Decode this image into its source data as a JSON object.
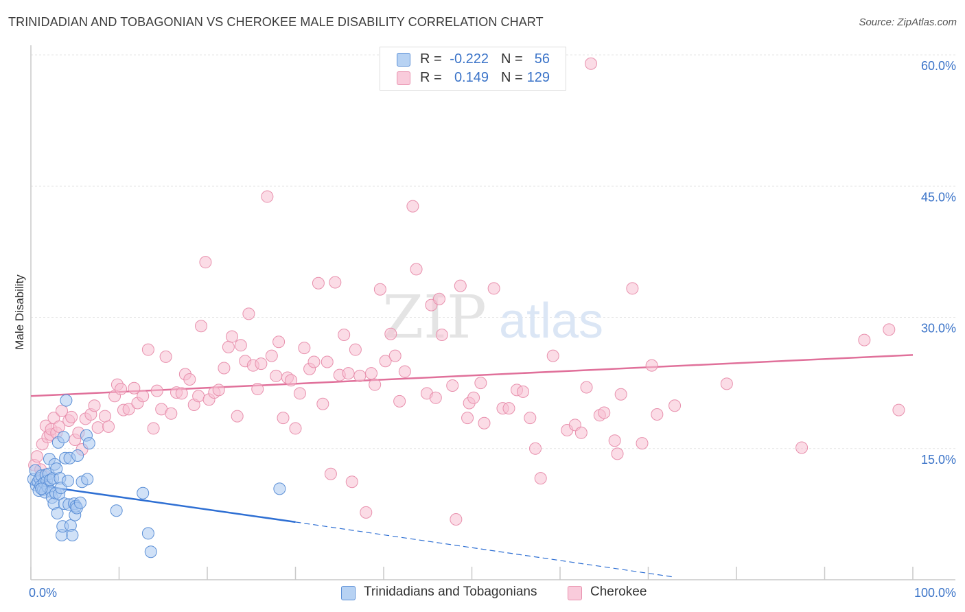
{
  "header": {
    "title": "TRINIDADIAN AND TOBAGONIAN VS CHEROKEE MALE DISABILITY CORRELATION CHART",
    "source": "Source: ZipAtlas.com"
  },
  "watermark": {
    "zip": "ZIP",
    "atlas": "atlas"
  },
  "legend": {
    "rows": [
      {
        "r_label": "R =",
        "r_value": "-0.222",
        "n_label": "N =",
        "n_value": "56"
      },
      {
        "r_label": "R =",
        "r_value": "0.149",
        "n_label": "N =",
        "n_value": "129"
      }
    ]
  },
  "bottom_legend": {
    "items": [
      {
        "label": "Trinidadians and Tobagonians"
      },
      {
        "label": "Cherokee"
      }
    ]
  },
  "colors": {
    "blue_fill": "#a9c8f0",
    "blue_stroke": "#5b8fd6",
    "blue_line": "#2e6fd3",
    "pink_fill": "#f7c0d2",
    "pink_stroke": "#e890ad",
    "pink_line": "#e0709a",
    "tick_label": "#3a73c8",
    "grid": "#e4e4e4"
  },
  "chart_data": {
    "type": "scatter",
    "title": "TRINIDADIAN AND TOBAGONIAN VS CHEROKEE MALE DISABILITY CORRELATION CHART",
    "xlabel": "",
    "ylabel": "Male Disability",
    "xlim": [
      0,
      100
    ],
    "ylim": [
      0,
      60
    ],
    "x_tick_labels": [
      "0.0%",
      "100.0%"
    ],
    "y_ticks": [
      15,
      30,
      45,
      60
    ],
    "y_tick_labels": [
      "15.0%",
      "30.0%",
      "45.0%",
      "60.0%"
    ],
    "grid": true,
    "legend_position": "top-center",
    "series": [
      {
        "name": "Trinidadians and Tobagonians",
        "r": -0.222,
        "n": 56,
        "trend": {
          "x": [
            0,
            30,
            73
          ],
          "y": [
            10.9,
            6.6,
            0.3
          ],
          "solid_until": 30
        },
        "points": [
          [
            0.3,
            11.5
          ],
          [
            0.5,
            12.5
          ],
          [
            0.6,
            10.8
          ],
          [
            0.8,
            11.2
          ],
          [
            0.9,
            10.2
          ],
          [
            1.0,
            11.6
          ],
          [
            1.1,
            10.7
          ],
          [
            1.2,
            11.9
          ],
          [
            1.4,
            10.3
          ],
          [
            1.5,
            11.1
          ],
          [
            1.6,
            10.0
          ],
          [
            1.7,
            12.0
          ],
          [
            1.8,
            11.3
          ],
          [
            1.9,
            10.6
          ],
          [
            2.0,
            12.1
          ],
          [
            2.1,
            13.8
          ],
          [
            2.2,
            11.4
          ],
          [
            2.3,
            10.1
          ],
          [
            2.4,
            9.4
          ],
          [
            2.5,
            11.6
          ],
          [
            2.6,
            8.7
          ],
          [
            2.7,
            13.2
          ],
          [
            2.8,
            9.9
          ],
          [
            2.9,
            12.7
          ],
          [
            3.0,
            7.6
          ],
          [
            3.1,
            15.7
          ],
          [
            3.2,
            9.8
          ],
          [
            3.3,
            11.6
          ],
          [
            3.4,
            10.5
          ],
          [
            3.5,
            5.1
          ],
          [
            3.6,
            6.1
          ],
          [
            3.7,
            16.3
          ],
          [
            3.8,
            8.7
          ],
          [
            3.9,
            13.9
          ],
          [
            4.0,
            20.5
          ],
          [
            4.2,
            11.3
          ],
          [
            4.3,
            8.6
          ],
          [
            4.4,
            13.9
          ],
          [
            4.5,
            6.2
          ],
          [
            4.7,
            5.1
          ],
          [
            4.9,
            8.7
          ],
          [
            5.0,
            7.4
          ],
          [
            5.1,
            8.4
          ],
          [
            5.2,
            8.2
          ],
          [
            5.3,
            14.2
          ],
          [
            5.6,
            8.8
          ],
          [
            5.8,
            11.2
          ],
          [
            6.3,
            16.5
          ],
          [
            6.4,
            11.5
          ],
          [
            6.6,
            15.6
          ],
          [
            9.7,
            7.9
          ],
          [
            12.7,
            9.9
          ],
          [
            13.3,
            5.3
          ],
          [
            13.6,
            3.2
          ],
          [
            28.2,
            10.4
          ],
          [
            1.2,
            10.4
          ]
        ]
      },
      {
        "name": "Cherokee",
        "r": 0.149,
        "n": 129,
        "trend": {
          "x": [
            0,
            100
          ],
          "y": [
            21.0,
            25.7
          ]
        },
        "points": [
          [
            0.4,
            13.1
          ],
          [
            0.7,
            14.1
          ],
          [
            1.1,
            12.6
          ],
          [
            1.3,
            15.5
          ],
          [
            1.6,
            11.8
          ],
          [
            1.7,
            17.6
          ],
          [
            1.9,
            16.3
          ],
          [
            2.2,
            16.6
          ],
          [
            2.3,
            17.2
          ],
          [
            2.6,
            18.5
          ],
          [
            2.9,
            16.8
          ],
          [
            3.2,
            17.5
          ],
          [
            3.5,
            19.3
          ],
          [
            4.3,
            18.2
          ],
          [
            4.6,
            18.6
          ],
          [
            5.0,
            16.0
          ],
          [
            5.4,
            16.8
          ],
          [
            5.8,
            14.9
          ],
          [
            6.2,
            18.4
          ],
          [
            6.8,
            18.9
          ],
          [
            7.2,
            19.9
          ],
          [
            7.6,
            17.4
          ],
          [
            8.4,
            18.7
          ],
          [
            8.8,
            17.5
          ],
          [
            9.5,
            21.0
          ],
          [
            9.8,
            22.3
          ],
          [
            10.2,
            21.8
          ],
          [
            10.5,
            19.4
          ],
          [
            11.1,
            19.5
          ],
          [
            11.7,
            21.9
          ],
          [
            12.1,
            20.2
          ],
          [
            12.7,
            21.0
          ],
          [
            13.3,
            26.3
          ],
          [
            13.9,
            17.3
          ],
          [
            14.3,
            21.6
          ],
          [
            14.8,
            19.5
          ],
          [
            15.3,
            25.5
          ],
          [
            15.9,
            19.0
          ],
          [
            16.5,
            21.4
          ],
          [
            17.1,
            21.3
          ],
          [
            17.5,
            23.5
          ],
          [
            18.0,
            22.9
          ],
          [
            18.5,
            20.0
          ],
          [
            19.0,
            21.0
          ],
          [
            19.3,
            29.0
          ],
          [
            19.8,
            36.3
          ],
          [
            20.2,
            20.6
          ],
          [
            20.8,
            21.4
          ],
          [
            21.3,
            21.7
          ],
          [
            21.9,
            24.2
          ],
          [
            22.4,
            26.6
          ],
          [
            22.8,
            27.8
          ],
          [
            23.4,
            18.7
          ],
          [
            23.8,
            26.8
          ],
          [
            24.3,
            25.0
          ],
          [
            24.7,
            30.4
          ],
          [
            25.2,
            24.5
          ],
          [
            25.7,
            21.8
          ],
          [
            26.1,
            24.7
          ],
          [
            26.8,
            43.8
          ],
          [
            27.3,
            25.6
          ],
          [
            27.8,
            23.3
          ],
          [
            28.1,
            27.2
          ],
          [
            28.6,
            18.5
          ],
          [
            29.1,
            23.1
          ],
          [
            29.5,
            22.8
          ],
          [
            30.0,
            17.3
          ],
          [
            30.5,
            21.3
          ],
          [
            31.0,
            26.5
          ],
          [
            31.6,
            24.1
          ],
          [
            32.1,
            24.9
          ],
          [
            32.6,
            33.9
          ],
          [
            33.1,
            20.1
          ],
          [
            33.6,
            24.9
          ],
          [
            34.0,
            12.1
          ],
          [
            34.5,
            34.0
          ],
          [
            35.0,
            23.4
          ],
          [
            35.5,
            28.0
          ],
          [
            36.0,
            23.6
          ],
          [
            36.4,
            11.2
          ],
          [
            36.8,
            26.3
          ],
          [
            37.3,
            23.3
          ],
          [
            38.0,
            7.7
          ],
          [
            38.6,
            23.6
          ],
          [
            39.0,
            22.3
          ],
          [
            39.6,
            33.2
          ],
          [
            40.2,
            25.0
          ],
          [
            40.8,
            28.1
          ],
          [
            41.3,
            25.6
          ],
          [
            41.8,
            20.4
          ],
          [
            42.4,
            23.8
          ],
          [
            43.3,
            42.7
          ],
          [
            43.7,
            35.5
          ],
          [
            44.9,
            21.3
          ],
          [
            45.4,
            31.4
          ],
          [
            45.9,
            20.8
          ],
          [
            46.3,
            32.1
          ],
          [
            46.6,
            28.0
          ],
          [
            47.8,
            22.2
          ],
          [
            48.2,
            6.9
          ],
          [
            48.7,
            33.6
          ],
          [
            49.5,
            18.5
          ],
          [
            49.7,
            20.2
          ],
          [
            50.2,
            20.8
          ],
          [
            51.0,
            22.5
          ],
          [
            51.4,
            17.9
          ],
          [
            52.5,
            33.3
          ],
          [
            53.5,
            19.6
          ],
          [
            54.2,
            19.6
          ],
          [
            55.1,
            21.7
          ],
          [
            55.8,
            21.5
          ],
          [
            56.6,
            18.5
          ],
          [
            57.2,
            15.0
          ],
          [
            57.8,
            11.6
          ],
          [
            59.2,
            25.6
          ],
          [
            60.8,
            17.1
          ],
          [
            61.7,
            17.7
          ],
          [
            62.4,
            16.8
          ],
          [
            63.0,
            22.0
          ],
          [
            63.5,
            59.0
          ],
          [
            64.5,
            18.8
          ],
          [
            65.0,
            19.1
          ],
          [
            66.2,
            15.9
          ],
          [
            66.5,
            14.4
          ],
          [
            66.9,
            21.2
          ],
          [
            68.2,
            33.3
          ],
          [
            69.3,
            15.6
          ],
          [
            70.4,
            24.5
          ],
          [
            71.0,
            18.9
          ],
          [
            73.0,
            19.9
          ],
          [
            78.9,
            22.4
          ],
          [
            87.4,
            15.1
          ],
          [
            94.5,
            27.4
          ],
          [
            97.3,
            28.6
          ],
          [
            98.4,
            19.4
          ]
        ]
      }
    ]
  }
}
